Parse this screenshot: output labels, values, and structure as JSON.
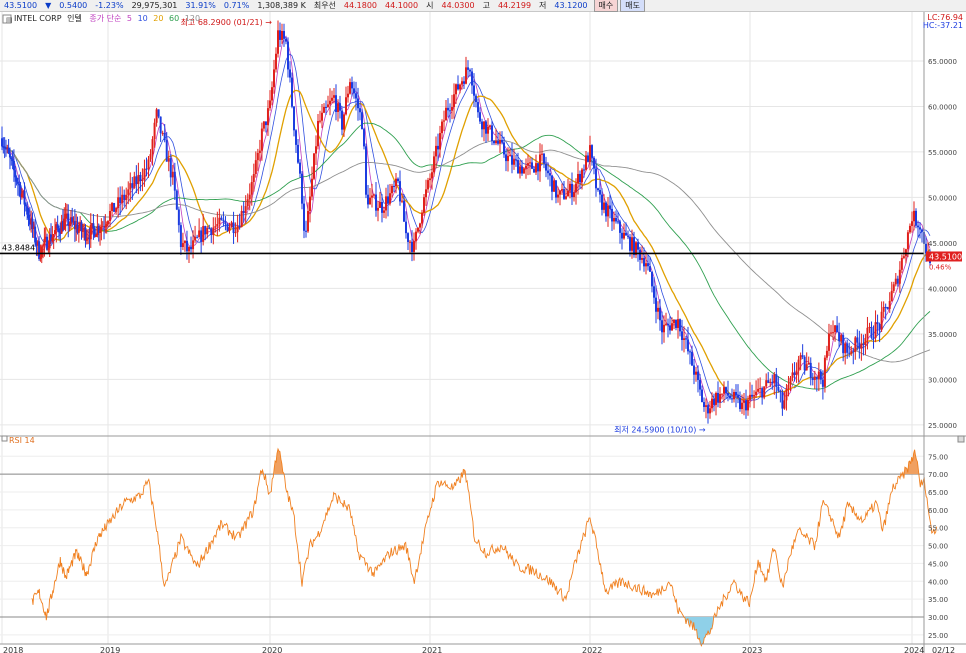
{
  "topbar": {
    "price": "43.5100",
    "change": "0.5400",
    "change_pct": "-1.23%",
    "volume": "29,975,301",
    "pct2": "31.91%",
    "pct3": "0.71%",
    "amount": "1,308,389 K",
    "priority_label": "최우선",
    "ask": "44.1800",
    "bid": "44.1000",
    "open_label": "시",
    "open": "44.0300",
    "high_label": "고",
    "high": "44.2199",
    "low_label": "저",
    "low": "43.1200",
    "buy_label": "매수",
    "sell_label": "매도"
  },
  "legend": {
    "name": "INTEL CORP",
    "adj": "인텔",
    "ma_label": "종가 단순",
    "ma5": "5",
    "ma10": "10",
    "ma20": "20",
    "ma60": "60",
    "ma120": "120"
  },
  "corner": {
    "lc": "LC:76.94",
    "hc": "HC:-37.21"
  },
  "colors": {
    "up": "#e0201c",
    "down": "#1c3ce0",
    "ma5": "#c040c0",
    "ma10": "#3050e0",
    "ma20": "#e0a000",
    "ma60": "#30a050",
    "ma120": "#909090",
    "rsi": "#f08020"
  },
  "chart_data": [
    {
      "type": "candlestick",
      "title": "",
      "price_axis": {
        "ylim": [
          24,
          69.5
        ],
        "ticks": [
          25,
          30,
          35,
          40,
          45,
          50,
          55,
          60,
          65
        ],
        "tick_labels": [
          "25.0000",
          "30.0000",
          "35.0000",
          "40.0000",
          "45.0000",
          "50.0000",
          "55.0000",
          "60.0000",
          "65.0000"
        ]
      },
      "x_axis": {
        "labels": [
          "2018",
          "2019",
          "2020",
          "2021",
          "2022",
          "2023",
          "2024",
          "02/12"
        ]
      },
      "key_points": [
        [
          2018.0,
          56.5
        ],
        [
          2018.2,
          50
        ],
        [
          2018.35,
          44
        ],
        [
          2018.45,
          45.5
        ],
        [
          2018.6,
          47.5
        ],
        [
          2018.8,
          46
        ],
        [
          2018.95,
          47
        ],
        [
          2019.1,
          50
        ],
        [
          2019.25,
          53.5
        ],
        [
          2019.3,
          59
        ],
        [
          2019.4,
          52
        ],
        [
          2019.45,
          45
        ],
        [
          2019.5,
          44
        ],
        [
          2019.6,
          46.5
        ],
        [
          2019.7,
          47
        ],
        [
          2019.8,
          47
        ],
        [
          2019.9,
          52
        ],
        [
          2019.95,
          57
        ],
        [
          2020.0,
          60
        ],
        [
          2020.05,
          68
        ],
        [
          2020.1,
          67
        ],
        [
          2020.15,
          58
        ],
        [
          2020.2,
          50
        ],
        [
          2020.22,
          45
        ],
        [
          2020.3,
          58
        ],
        [
          2020.4,
          61
        ],
        [
          2020.45,
          58
        ],
        [
          2020.5,
          63
        ],
        [
          2020.58,
          58
        ],
        [
          2020.6,
          50
        ],
        [
          2020.7,
          49
        ],
        [
          2020.8,
          51.5
        ],
        [
          2020.85,
          46
        ],
        [
          2020.9,
          44.5
        ],
        [
          2020.95,
          49
        ],
        [
          2021.0,
          52
        ],
        [
          2021.1,
          59.5
        ],
        [
          2021.2,
          63
        ],
        [
          2021.25,
          64.5
        ],
        [
          2021.3,
          59
        ],
        [
          2021.4,
          56.5
        ],
        [
          2021.5,
          54
        ],
        [
          2021.6,
          53
        ],
        [
          2021.7,
          54
        ],
        [
          2021.8,
          50
        ],
        [
          2021.9,
          51
        ],
        [
          2022.0,
          55
        ],
        [
          2022.05,
          50
        ],
        [
          2022.2,
          46
        ],
        [
          2022.35,
          43
        ],
        [
          2022.45,
          35.5
        ],
        [
          2022.55,
          36.5
        ],
        [
          2022.65,
          31
        ],
        [
          2022.72,
          26.5
        ],
        [
          2022.78,
          28
        ],
        [
          2022.85,
          28.5
        ],
        [
          2022.95,
          27
        ],
        [
          2023.05,
          28.5
        ],
        [
          2023.15,
          30
        ],
        [
          2023.2,
          27
        ],
        [
          2023.3,
          32
        ],
        [
          2023.45,
          30
        ],
        [
          2023.5,
          36
        ],
        [
          2023.6,
          33
        ],
        [
          2023.7,
          34.5
        ],
        [
          2023.8,
          36
        ],
        [
          2023.9,
          40.5
        ],
        [
          2023.95,
          44
        ],
        [
          2024.0,
          48
        ],
        [
          2024.05,
          47
        ],
        [
          2024.1,
          43.5
        ]
      ],
      "annotations": [
        {
          "text": "최고 68.2900 (01/21)",
          "x": 2020.05,
          "y": 68.29,
          "arrow": "right"
        },
        {
          "text": "최저 24.5900 (10/10)",
          "x": 2022.76,
          "y": 24.59,
          "arrow": "right"
        }
      ],
      "horizontal_line": {
        "value": 43.8484,
        "label": "43.8484"
      },
      "last_price": {
        "value": 43.51,
        "label": "43.5100",
        "pct": "0.46%"
      },
      "moving_averages": [
        "5",
        "10",
        "20",
        "60",
        "120"
      ]
    },
    {
      "type": "line",
      "title": "RSI 14",
      "y_axis": {
        "ylim": [
          23,
          79
        ],
        "ticks": [
          25,
          30,
          35,
          40,
          45,
          50,
          55,
          60,
          65,
          70,
          75
        ],
        "tick_labels": [
          "25.00",
          "30.00",
          "35.00",
          "40.00",
          "45.00",
          "50.00",
          "55.00",
          "60.00",
          "65.00",
          "70.00",
          "75.00"
        ]
      },
      "reference_lines": [
        30,
        70
      ],
      "key_points": [
        [
          2018.28,
          34
        ],
        [
          2018.35,
          37
        ],
        [
          2018.42,
          30
        ],
        [
          2018.5,
          40
        ],
        [
          2018.55,
          46
        ],
        [
          2018.6,
          41
        ],
        [
          2018.7,
          48
        ],
        [
          2018.8,
          42
        ],
        [
          2018.9,
          52
        ],
        [
          2019.0,
          56
        ],
        [
          2019.1,
          62
        ],
        [
          2019.2,
          64
        ],
        [
          2019.25,
          68
        ],
        [
          2019.3,
          55
        ],
        [
          2019.35,
          38
        ],
        [
          2019.45,
          52
        ],
        [
          2019.55,
          44
        ],
        [
          2019.7,
          56
        ],
        [
          2019.8,
          52
        ],
        [
          2019.9,
          60
        ],
        [
          2019.95,
          72
        ],
        [
          2020.0,
          64
        ],
        [
          2020.05,
          78
        ],
        [
          2020.1,
          66
        ],
        [
          2020.15,
          58
        ],
        [
          2020.2,
          40
        ],
        [
          2020.25,
          50
        ],
        [
          2020.3,
          53
        ],
        [
          2020.4,
          64
        ],
        [
          2020.5,
          60
        ],
        [
          2020.55,
          48
        ],
        [
          2020.65,
          42
        ],
        [
          2020.75,
          48
        ],
        [
          2020.85,
          50
        ],
        [
          2020.9,
          40
        ],
        [
          2021.0,
          60
        ],
        [
          2021.05,
          68
        ],
        [
          2021.15,
          66
        ],
        [
          2021.22,
          71
        ],
        [
          2021.28,
          52
        ],
        [
          2021.35,
          48
        ],
        [
          2021.45,
          50
        ],
        [
          2021.55,
          44
        ],
        [
          2021.65,
          43
        ],
        [
          2021.75,
          40
        ],
        [
          2021.85,
          35
        ],
        [
          2021.9,
          44
        ],
        [
          2022.0,
          58
        ],
        [
          2022.05,
          48
        ],
        [
          2022.1,
          37
        ],
        [
          2022.2,
          40
        ],
        [
          2022.3,
          38
        ],
        [
          2022.4,
          36
        ],
        [
          2022.5,
          40
        ],
        [
          2022.55,
          32
        ],
        [
          2022.65,
          27
        ],
        [
          2022.7,
          23
        ],
        [
          2022.75,
          26
        ],
        [
          2022.8,
          32
        ],
        [
          2022.85,
          36
        ],
        [
          2022.9,
          40
        ],
        [
          2022.95,
          36
        ],
        [
          2023.0,
          34
        ],
        [
          2023.05,
          46
        ],
        [
          2023.1,
          40
        ],
        [
          2023.15,
          50
        ],
        [
          2023.2,
          38
        ],
        [
          2023.25,
          48
        ],
        [
          2023.3,
          54
        ],
        [
          2023.4,
          50
        ],
        [
          2023.45,
          62
        ],
        [
          2023.5,
          58
        ],
        [
          2023.55,
          52
        ],
        [
          2023.6,
          61
        ],
        [
          2023.7,
          57
        ],
        [
          2023.78,
          62
        ],
        [
          2023.82,
          54
        ],
        [
          2023.88,
          66
        ],
        [
          2023.95,
          70
        ],
        [
          2024.0,
          74
        ],
        [
          2024.02,
          77
        ],
        [
          2024.05,
          67
        ],
        [
          2024.08,
          68
        ],
        [
          2024.12,
          54
        ],
        [
          2024.16,
          55
        ]
      ]
    }
  ]
}
